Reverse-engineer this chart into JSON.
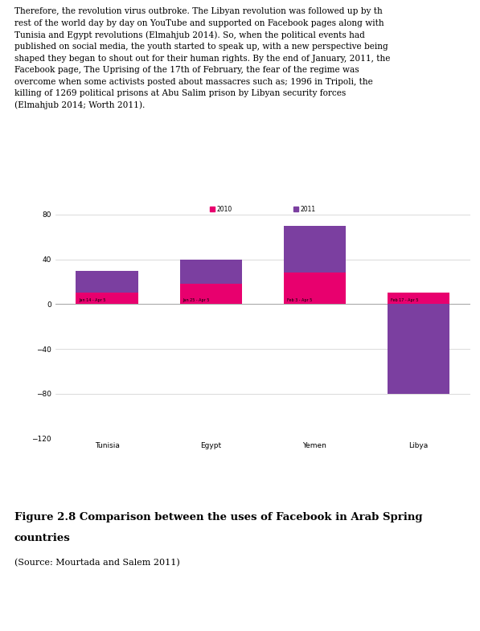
{
  "categories": [
    "Tunisia",
    "Egypt",
    "Yemen",
    "Libya"
  ],
  "date_labels": [
    "Jan 14 - Apr 5",
    "Jan 25 - Apr 5",
    "Feb 3 - Apr 5",
    "Feb 17 - Apr 5"
  ],
  "values_2010": [
    10,
    18,
    28,
    10
  ],
  "values_2011": [
    20,
    22,
    42,
    -80
  ],
  "color_2010": "#e8006e",
  "color_2011": "#7b3fa0",
  "ylim": [
    -120,
    80
  ],
  "yticks": [
    -120,
    -80,
    -40,
    0,
    40,
    80
  ],
  "legend_label_2010": "2010",
  "legend_label_2011": "2011",
  "bar_width": 0.6,
  "background_color": "#ffffff",
  "grid_color": "#cccccc"
}
